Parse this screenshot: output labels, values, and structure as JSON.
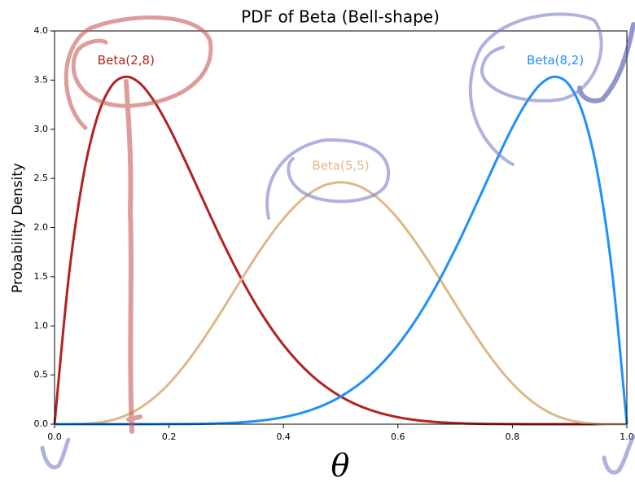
{
  "chart_data": {
    "type": "line",
    "title": "PDF of Beta (Bell-shape)",
    "x_label": "θ",
    "y_label": "Probability Density",
    "x": [
      0,
      0.025,
      0.05,
      0.075,
      0.1,
      0.125,
      0.15,
      0.175,
      0.2,
      0.225,
      0.25,
      0.275,
      0.3,
      0.325,
      0.35,
      0.375,
      0.4,
      0.425,
      0.45,
      0.475,
      0.5,
      0.525,
      0.55,
      0.575,
      0.6,
      0.625,
      0.65,
      0.675,
      0.7,
      0.725,
      0.75,
      0.775,
      0.8,
      0.825,
      0.85,
      0.875,
      0.9,
      0.925,
      0.95,
      0.975,
      1
    ],
    "series": [
      {
        "name": "Beta(2,8)",
        "color": "#b22222",
        "values": [
          0,
          1.508,
          2.514,
          3.129,
          3.444,
          3.534,
          3.463,
          3.277,
          3.02,
          2.72,
          2.403,
          2.085,
          1.779,
          1.494,
          1.235,
          1.006,
          0.806,
          0.636,
          0.493,
          0.376,
          0.281,
          0.206,
          0.148,
          0.104,
          0.071,
          0.047,
          0.03,
          0.019,
          0.011,
          0.006,
          0.003,
          0.002,
          0.001,
          0,
          0,
          0,
          0,
          0,
          0,
          0,
          0
        ]
      },
      {
        "name": "Beta(5,5)",
        "color": "#deb887",
        "values": [
          0,
          0,
          0.003,
          0.015,
          0.041,
          0.09,
          0.167,
          0.274,
          0.413,
          0.583,
          0.779,
          0.996,
          1.225,
          1.459,
          1.688,
          1.901,
          2.09,
          2.247,
          2.364,
          2.436,
          2.461,
          2.436,
          2.364,
          2.247,
          2.09,
          1.901,
          1.688,
          1.459,
          1.225,
          0.996,
          0.779,
          0.583,
          0.413,
          0.274,
          0.167,
          0.09,
          0.041,
          0.015,
          0.003,
          0,
          0
        ]
      },
      {
        "name": "Beta(8,2)",
        "color": "#1e90ff",
        "values": [
          0,
          0,
          0,
          0,
          0,
          0,
          0,
          0,
          0.001,
          0.002,
          0.003,
          0.006,
          0.011,
          0.019,
          0.03,
          0.047,
          0.071,
          0.104,
          0.148,
          0.206,
          0.281,
          0.376,
          0.493,
          0.636,
          0.806,
          1.006,
          1.235,
          1.494,
          1.779,
          2.085,
          2.403,
          2.72,
          3.02,
          3.277,
          3.463,
          3.534,
          3.444,
          3.129,
          2.514,
          1.508,
          0
        ]
      }
    ],
    "xlim": [
      0,
      1
    ],
    "ylim": [
      0,
      4
    ],
    "xticks": [
      {
        "value": 0,
        "label": "0.0"
      },
      {
        "value": 0.2,
        "label": "0.2"
      },
      {
        "value": 0.4,
        "label": "0.4"
      },
      {
        "value": 0.6,
        "label": "0.6"
      },
      {
        "value": 0.8,
        "label": "0.8"
      },
      {
        "value": 1,
        "label": "1.0"
      }
    ],
    "yticks": [
      {
        "value": 0,
        "label": "0.0"
      },
      0.5,
      {
        "value": 1,
        "label": "1.0"
      },
      1.5,
      {
        "value": 2,
        "label": "2.0"
      },
      2.5,
      {
        "value": 3,
        "label": "3.0"
      },
      3.5,
      {
        "value": 4,
        "label": "4.0"
      }
    ],
    "grid": false
  }
}
